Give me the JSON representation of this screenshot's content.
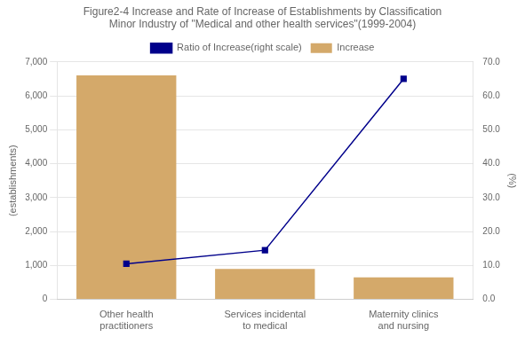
{
  "chart_data": {
    "type": "bar",
    "title": "Figure2-4 Increase and Rate of Increase of Establishments by Classification\nMinor Industry of \"Medical and other health services\"(1999-2004)",
    "categories": [
      "Other health\npractitioners",
      "Services incidental\nto medical",
      "Maternity clinics\nand nursing"
    ],
    "series": [
      {
        "name": "Increase",
        "type": "bar",
        "color": "#D4A96A",
        "values": [
          6600,
          900,
          650
        ]
      },
      {
        "name": "Ratio of Increase(right scale)",
        "type": "line",
        "axis": "y2",
        "color": "#00008B",
        "marker": "square",
        "values": [
          10.5,
          14.5,
          65.0
        ]
      }
    ],
    "y_label": "(establishments)",
    "y2_label": "(%)",
    "ylim": [
      0,
      7000
    ],
    "yticks": [
      0,
      {
        "value": 1000,
        "label": "1,000"
      },
      {
        "value": 2000,
        "label": "2,000"
      },
      {
        "value": 3000,
        "label": "3,000"
      },
      {
        "value": 4000,
        "label": "4,000"
      },
      {
        "value": 5000,
        "label": "5,000"
      },
      {
        "value": 6000,
        "label": "6,000"
      },
      {
        "value": 7000,
        "label": "7,000"
      }
    ],
    "y2lim": [
      0,
      70.0
    ],
    "y2ticks": [
      {
        "value": 0,
        "label": "0.0"
      },
      {
        "value": 10,
        "label": "10.0"
      },
      {
        "value": 20,
        "label": "20.0"
      },
      {
        "value": 30,
        "label": "30.0"
      },
      {
        "value": 40,
        "label": "40.0"
      },
      {
        "value": 50,
        "label": "50.0"
      },
      {
        "value": 60,
        "label": "60.0"
      },
      {
        "value": 70,
        "label": "70.0"
      }
    ],
    "grid": true,
    "legend": "top"
  }
}
